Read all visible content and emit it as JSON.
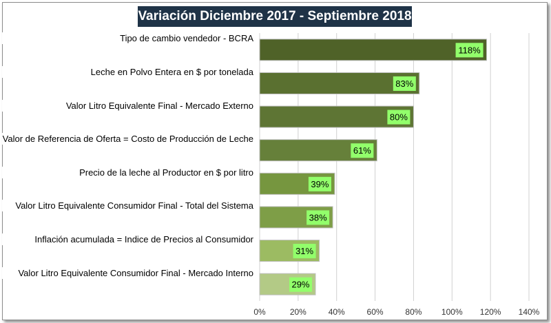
{
  "chart_data": {
    "type": "bar",
    "orientation": "horizontal",
    "title": "Variación Diciembre 2017 - Septiembre 2018",
    "categories": [
      "Tipo de cambio vendedor - BCRA",
      "Leche en Polvo Entera en $ por tonelada",
      "Valor Litro Equivalente Final - Mercado Externo",
      "Valor de Referencia de Oferta = Costo de Producción de Leche",
      "Precio de la leche al Productor en $ por litro",
      "Valor Litro Equivalente Consumidor Final - Total del Sistema",
      "Inflación acumulada = Indice de Precios al Consumidor",
      "Valor Litro Equivalente Consumidor Final - Mercado Interno"
    ],
    "values": [
      118,
      83,
      80,
      61,
      39,
      38,
      31,
      29
    ],
    "data_labels": [
      "118%",
      "83%",
      "80%",
      "61%",
      "39%",
      "38%",
      "31%",
      "29%"
    ],
    "bar_colors": [
      "#4f6228",
      "#5a7030",
      "#5e7534",
      "#66803a",
      "#76963f",
      "#7e9e47",
      "#9cbb62",
      "#b3ca86"
    ],
    "label_box_color": "#92ff6b",
    "xlim": [
      0,
      140
    ],
    "x_ticks": [
      "0%",
      "20%",
      "40%",
      "60%",
      "80%",
      "100%",
      "120%",
      "140%"
    ],
    "grid": true,
    "legend": "none"
  }
}
